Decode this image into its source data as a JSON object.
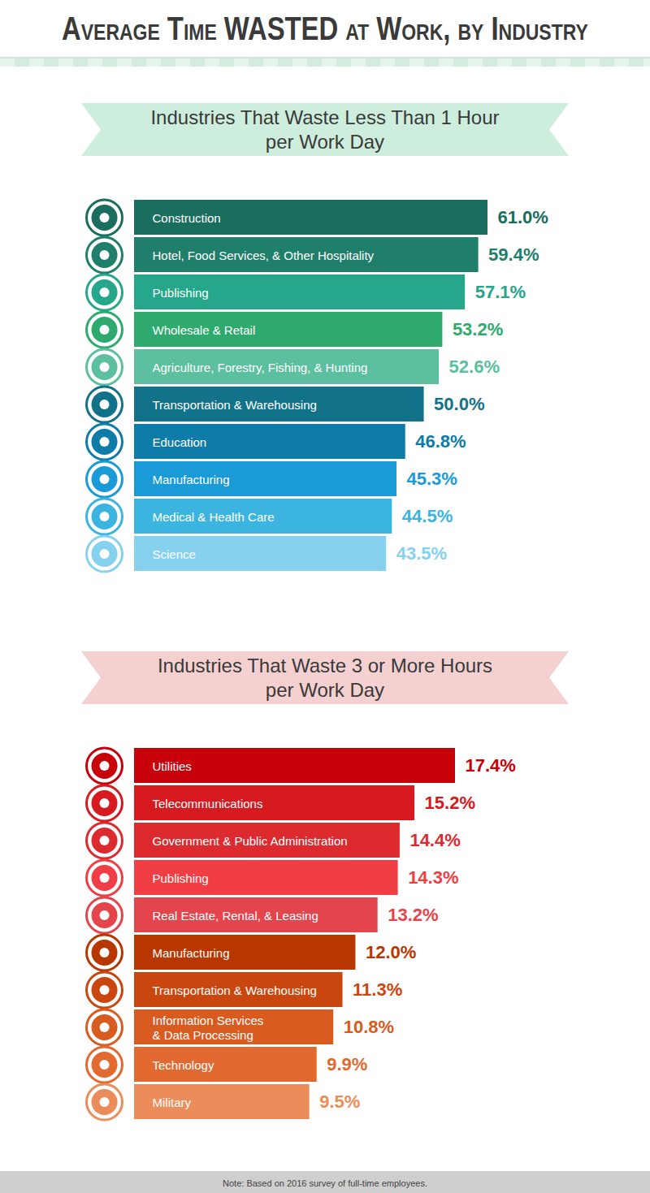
{
  "title": "Average Time WASTED at Work, by Industry",
  "note": "Note: Based on 2016 survey of full-time employees.",
  "chart_data": [
    {
      "type": "bar",
      "title": "Industries That Waste Less Than 1 Hour\nper Work Day",
      "orientation": "horizontal",
      "categories": [
        "Construction",
        "Hotel, Food Services, & Other Hospitality",
        "Publishing",
        "Wholesale & Retail",
        "Agriculture, Forestry, Fishing, & Hunting",
        "Transportation & Warehousing",
        "Education",
        "Manufacturing",
        "Medical & Health Care",
        "Science"
      ],
      "values": [
        61.0,
        59.4,
        57.1,
        53.2,
        52.6,
        50.0,
        46.8,
        45.3,
        44.5,
        43.5
      ],
      "value_labels": [
        "61.0%",
        "59.4%",
        "57.1%",
        "53.2%",
        "52.6%",
        "50.0%",
        "46.8%",
        "45.3%",
        "44.5%",
        "43.5%"
      ],
      "colors": [
        "#1a6e5e",
        "#1f7f6a",
        "#26a68a",
        "#2eaa6e",
        "#5cbfa0",
        "#127289",
        "#0e7ca8",
        "#1a9ad6",
        "#3bb5e0",
        "#86d1ee"
      ],
      "xlim": [
        0,
        61.0
      ],
      "data_labels": true,
      "tick_labels": false
    },
    {
      "type": "bar",
      "title": "Industries That Waste 3 or More Hours\nper Work Day",
      "orientation": "horizontal",
      "categories": [
        "Utilities",
        "Telecommunications",
        "Government & Public Administration",
        "Publishing",
        "Real Estate, Rental, & Leasing",
        "Manufacturing",
        "Transportation & Warehousing",
        "Information Services\n& Data Processing",
        "Technology",
        "Military"
      ],
      "values": [
        17.4,
        15.2,
        14.4,
        14.3,
        13.2,
        12.0,
        11.3,
        10.8,
        9.9,
        9.5
      ],
      "value_labels": [
        "17.4%",
        "15.2%",
        "14.4%",
        "14.3%",
        "13.2%",
        "12.0%",
        "11.3%",
        "10.8%",
        "9.9%",
        "9.5%"
      ],
      "colors": [
        "#c8000a",
        "#d71920",
        "#dc2a2f",
        "#f03e44",
        "#e4454d",
        "#b83600",
        "#c9470e",
        "#d85b20",
        "#e26a30",
        "#ec8c5a"
      ],
      "xlim": [
        0,
        17.4
      ],
      "data_labels": true,
      "tick_labels": false
    }
  ]
}
